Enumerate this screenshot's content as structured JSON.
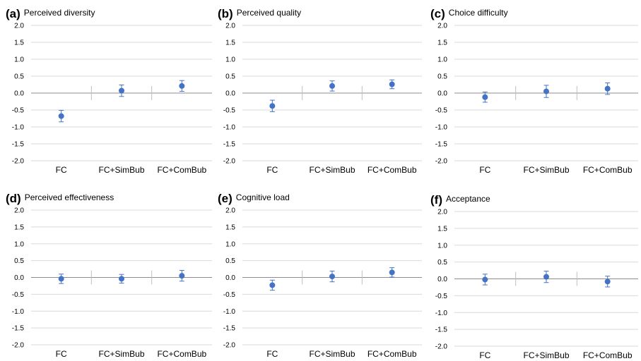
{
  "chart_data": [
    {
      "type": "scatter",
      "panel_label": "(a)",
      "title": "Perceived diversity",
      "categories": [
        "FC",
        "FC+SimBub",
        "FC+ComBub"
      ],
      "values": [
        -0.68,
        0.07,
        0.21
      ],
      "error": [
        0.17,
        0.17,
        0.16
      ],
      "ylim": [
        -2.0,
        2.0
      ],
      "yticks": [
        "2.0",
        "1.5",
        "1.0",
        "0.5",
        "0.0",
        "-0.5",
        "-1.0",
        "-1.5",
        "-2.0"
      ],
      "grid": true,
      "marker_color": "#4472c4"
    },
    {
      "type": "scatter",
      "panel_label": "(b)",
      "title": "Perceived quality",
      "categories": [
        "FC",
        "FC+SimBub",
        "FC+ComBub"
      ],
      "values": [
        -0.38,
        0.21,
        0.26
      ],
      "error": [
        0.17,
        0.15,
        0.13
      ],
      "ylim": [
        -2.0,
        2.0
      ],
      "yticks": [
        "2.0",
        "1.5",
        "1.0",
        "0.5",
        "0.0",
        "-0.5",
        "-1.0",
        "-1.5",
        "-2.0"
      ],
      "grid": true,
      "marker_color": "#4472c4"
    },
    {
      "type": "scatter",
      "panel_label": "(c)",
      "title": "Choice difficulty",
      "categories": [
        "FC",
        "FC+SimBub",
        "FC+ComBub"
      ],
      "values": [
        -0.12,
        0.05,
        0.13
      ],
      "error": [
        0.15,
        0.18,
        0.17
      ],
      "ylim": [
        -2.0,
        2.0
      ],
      "yticks": [
        "2.0",
        "1.5",
        "1.0",
        "0.5",
        "0.0",
        "-0.5",
        "-1.0",
        "-1.5",
        "-2.0"
      ],
      "grid": true,
      "marker_color": "#4472c4"
    },
    {
      "type": "scatter",
      "panel_label": "(d)",
      "title": "Perceived effectiveness",
      "categories": [
        "FC",
        "FC+SimBub",
        "FC+ComBub"
      ],
      "values": [
        -0.04,
        -0.04,
        0.05
      ],
      "error": [
        0.14,
        0.13,
        0.16
      ],
      "ylim": [
        -2.0,
        2.0
      ],
      "yticks": [
        "2.0",
        "1.5",
        "1.0",
        "0.5",
        "0.0",
        "-0.5",
        "-1.0",
        "-1.5",
        "-2.0"
      ],
      "grid": true,
      "marker_color": "#4472c4"
    },
    {
      "type": "scatter",
      "panel_label": "(e)",
      "title": "Cognitive load",
      "categories": [
        "FC",
        "FC+SimBub",
        "FC+ComBub"
      ],
      "values": [
        -0.23,
        0.03,
        0.15
      ],
      "error": [
        0.15,
        0.16,
        0.14
      ],
      "ylim": [
        -2.0,
        2.0
      ],
      "yticks": [
        "2.0",
        "1.5",
        "1.0",
        "0.5",
        "0.0",
        "-0.5",
        "-1.0",
        "-1.5",
        "-2.0"
      ],
      "grid": true,
      "marker_color": "#4472c4"
    },
    {
      "type": "scatter",
      "panel_label": "(f)",
      "title": "Acceptance",
      "categories": [
        "FC",
        "FC+SimBub",
        "FC+ComBub"
      ],
      "values": [
        -0.02,
        0.06,
        -0.08
      ],
      "error": [
        0.16,
        0.17,
        0.16
      ],
      "ylim": [
        -2.0,
        2.0
      ],
      "yticks": [
        "2.0",
        "1.5",
        "1.0",
        "0.5",
        "0.0",
        "-0.5",
        "-1.0",
        "-1.5",
        "-2.0"
      ],
      "grid": true,
      "marker_color": "#4472c4"
    }
  ]
}
